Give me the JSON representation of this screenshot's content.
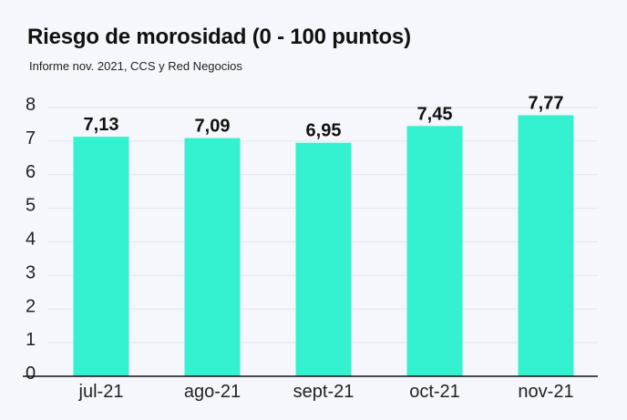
{
  "chart_data": {
    "type": "bar",
    "title": "Riesgo de morosidad (0 - 100 puntos)",
    "subtitle": "Informe nov. 2021, CCS y Red Negocios",
    "categories": [
      "jul-21",
      "ago-21",
      "sept-21",
      "oct-21",
      "nov-21"
    ],
    "values": [
      7.13,
      7.09,
      6.95,
      7.45,
      7.77
    ],
    "data_labels": [
      "7,13",
      "7,09",
      "6,95",
      "7,45",
      "7,77"
    ],
    "yticks": [
      "0",
      "1",
      "2",
      "3",
      "4",
      "5",
      "6",
      "7",
      "8"
    ],
    "ylim": [
      0,
      8
    ],
    "grid": true,
    "legend": "none",
    "xlabel": "",
    "ylabel": "",
    "colors": {
      "bar": "#34f2cf",
      "background": "#f5f7fd",
      "grid": "#e3e6ee",
      "axis": "#111111"
    }
  }
}
